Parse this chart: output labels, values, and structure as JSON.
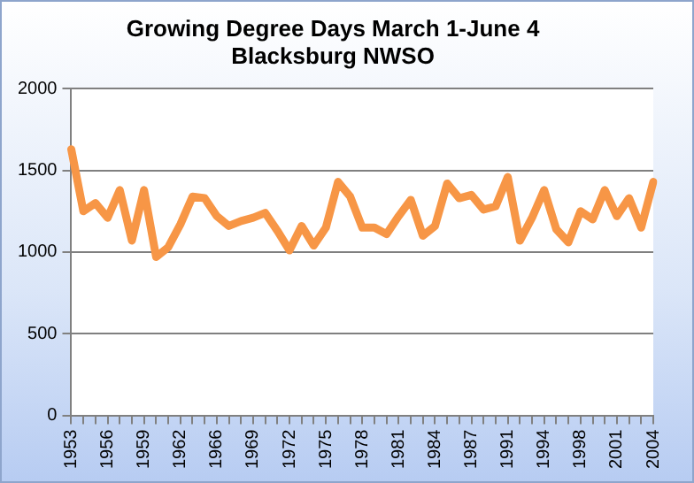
{
  "chart_data": {
    "type": "line",
    "title": [
      "Growing Degree Days March 1-June 4",
      "Blacksburg NWSO"
    ],
    "categories": [
      "1953",
      null,
      null,
      "1956",
      null,
      null,
      "1959",
      null,
      null,
      "1962",
      null,
      null,
      "1966",
      null,
      null,
      "1969",
      null,
      null,
      "1972",
      null,
      null,
      "1975",
      null,
      null,
      "1978",
      null,
      null,
      "1981",
      null,
      null,
      "1984",
      null,
      null,
      "1987",
      null,
      null,
      "1991",
      null,
      null,
      "1994",
      null,
      null,
      "1998",
      null,
      null,
      "2001",
      null,
      null,
      "2004"
    ],
    "series": [
      {
        "color": "#f79646",
        "values": [
          1630,
          1250,
          1300,
          1210,
          1380,
          1070,
          1380,
          970,
          1030,
          1170,
          1340,
          1330,
          1220,
          1160,
          1190,
          1210,
          1240,
          1130,
          1010,
          1160,
          1040,
          1150,
          1430,
          1340,
          1150,
          1150,
          1110,
          1220,
          1320,
          1100,
          1160,
          1420,
          1330,
          1350,
          1260,
          1280,
          1460,
          1070,
          1210,
          1380,
          1140,
          1060,
          1250,
          1200,
          1380,
          1220,
          1330,
          1150,
          1430
        ]
      }
    ],
    "ylim": [
      0,
      2000
    ],
    "yticks": [
      0,
      500,
      1000,
      1500,
      2000
    ],
    "grid": "y",
    "legend": false,
    "marker": "none",
    "line_style": "solid"
  }
}
